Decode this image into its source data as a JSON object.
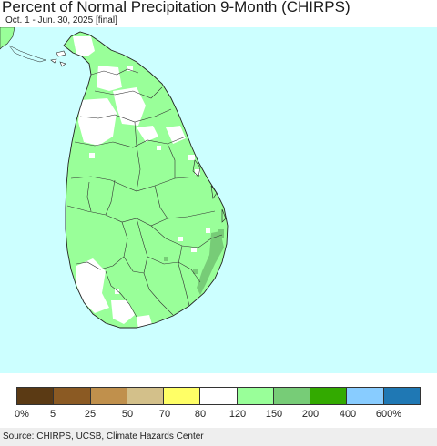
{
  "header": {
    "title": "Percent of Normal Precipitation 9-Month (CHIRPS)",
    "subtitle": "Oct. 1 - Jun. 30, 2025 [final]"
  },
  "map": {
    "region": "Sri Lanka",
    "ocean_color": "#ccffff",
    "dominant_category": "120-150",
    "categories_present": [
      "80-120",
      "120-150",
      "150-200"
    ]
  },
  "legend": {
    "colors": [
      "#5b3a14",
      "#8b5a23",
      "#c0904c",
      "#d3c08a",
      "#ffff66",
      "#ffffff",
      "#99ff99",
      "#77cc77",
      "#33aa00",
      "#88ccff",
      "#1f78b4"
    ],
    "labels": [
      "0%",
      "5",
      "25",
      "50",
      "70",
      "80",
      "120",
      "150",
      "200",
      "400",
      "600%"
    ]
  },
  "footer": {
    "source": "Source: CHIRPS, UCSB, Climate Hazards Center"
  }
}
